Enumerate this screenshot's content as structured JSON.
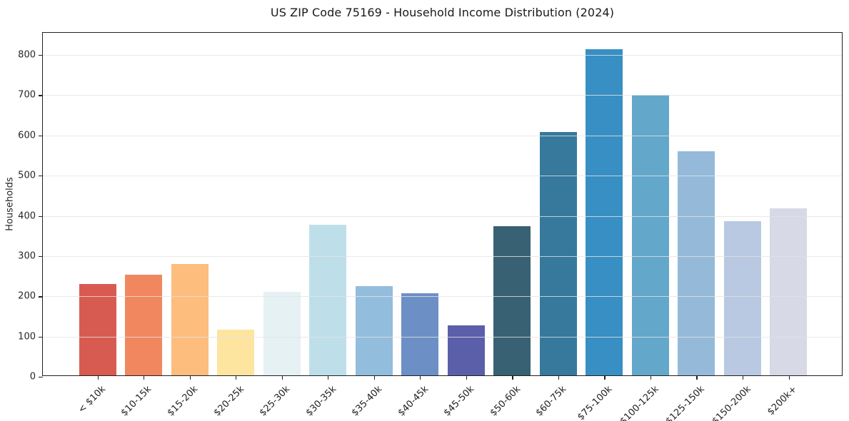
{
  "title": "US ZIP Code 75169 - Household Income Distribution (2024)",
  "chart_data": {
    "type": "bar",
    "title": "US ZIP Code 75169 - Household Income Distribution (2024)",
    "xlabel": "",
    "ylabel": "Households",
    "categories": [
      "< $10k",
      "$10-15k",
      "$15-20k",
      "$20-25k",
      "$25-30k",
      "$30-35k",
      "$35-40k",
      "$40-45k",
      "$45-50k",
      "$50-60k",
      "$60-75k",
      "$75-100k",
      "$100-125k",
      "$125-150k",
      "$150-200k",
      "$200k+"
    ],
    "values": [
      228,
      251,
      277,
      113,
      208,
      374,
      221,
      204,
      124,
      370,
      605,
      810,
      697,
      557,
      384,
      415
    ],
    "bar_colors": [
      "#d85b52",
      "#f1875f",
      "#fcbd7d",
      "#fde5a0",
      "#e6f1f4",
      "#bedfea",
      "#93bddc",
      "#6c8fc6",
      "#5b5fa9",
      "#386173",
      "#36799d",
      "#388fc3",
      "#63a7cb",
      "#95bad9",
      "#b8c9e1",
      "#d7d9e7"
    ],
    "yticks": [
      0,
      100,
      200,
      300,
      400,
      500,
      600,
      700,
      800
    ],
    "ylim": [
      0,
      855
    ],
    "grid": "horizontal-only",
    "legend": "none",
    "x_tick_rotation": -45,
    "frame_color": "#202020",
    "grid_color": "#e4e4e4"
  }
}
